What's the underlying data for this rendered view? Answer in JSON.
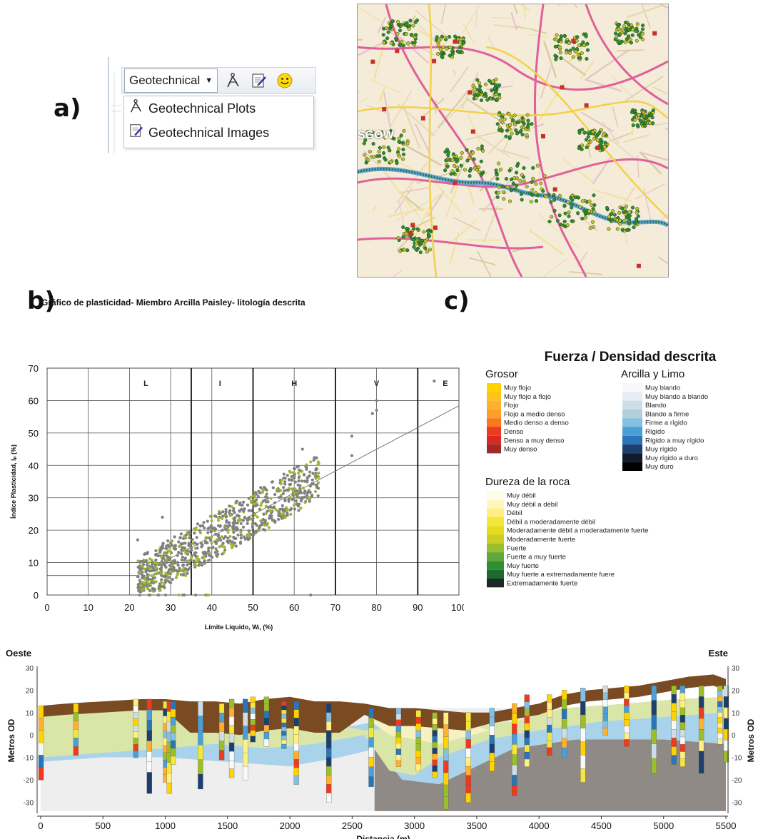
{
  "panel_labels": {
    "a": "a)",
    "b": "b)",
    "c": "c)"
  },
  "toolbar": {
    "dropdown_label": "Geotechnical",
    "menu_items": [
      "Geotechnical Plots",
      "Geotechnical Images"
    ],
    "icons": [
      "compass-icon",
      "notepad-pen-icon",
      "smiley-icon"
    ]
  },
  "map": {
    "label": "SGOW"
  },
  "caption_b": "Gráfico de plasticidad- Miembro Arcilla Paisley- litología descrita",
  "plasticity_chart": {
    "type": "scatter",
    "xlabel": "Límite Líquido, Wₗ, (%)",
    "ylabel": "Índice Plasticidad, Iₚ (%)",
    "xlim": [
      0,
      100
    ],
    "ylim": [
      0,
      70
    ],
    "x_ticks": [
      "0",
      "10",
      "20",
      "30",
      "40",
      "50",
      "60",
      "70",
      "80",
      "90",
      "100"
    ],
    "y_ticks": [
      "0",
      "10",
      "20",
      "30",
      "40",
      "50",
      "60",
      "70"
    ],
    "zones": [
      "L",
      "I",
      "H",
      "V",
      "E"
    ],
    "a_line": {
      "x": [
        22,
        100
      ],
      "y": [
        6,
        58.4
      ]
    },
    "point_colors": [
      "#808080",
      "#9bb82e"
    ]
  },
  "legend": {
    "title": "Fuerza / Densidad descrita",
    "grosor": {
      "heading": "Grosor",
      "items": [
        {
          "label": "Muy flojo",
          "color": "#ffd200"
        },
        {
          "label": "Muy flojo a flojo",
          "color": "#ffc21a"
        },
        {
          "label": "Flojo",
          "color": "#ffb030"
        },
        {
          "label": "Flojo a medio denso",
          "color": "#ff9d2a"
        },
        {
          "label": "Medio denso a denso",
          "color": "#f7781e"
        },
        {
          "label": "Denso",
          "color": "#ee3a1e"
        },
        {
          "label": "Denso a muy denso",
          "color": "#d62a22"
        },
        {
          "label": "Muy denso",
          "color": "#a02a2a"
        }
      ]
    },
    "arcilla": {
      "heading": "Arcilla y Limo",
      "items": [
        {
          "label": "Muy blando",
          "color": "#f7f9fb"
        },
        {
          "label": "Muy blando a blando",
          "color": "#e6edf3"
        },
        {
          "label": "Blando",
          "color": "#cfdde7"
        },
        {
          "label": "Blando a firme",
          "color": "#b2cfde"
        },
        {
          "label": "Firme a rígido",
          "color": "#84c0e0"
        },
        {
          "label": "Rígido",
          "color": "#4a9fd6"
        },
        {
          "label": "Rígido a muy rígido",
          "color": "#2a74b8"
        },
        {
          "label": "Muy rígido",
          "color": "#1c3f6e"
        },
        {
          "label": "Muy rígido a duro",
          "color": "#111a2b"
        },
        {
          "label": "Muy duro",
          "color": "#000000"
        }
      ]
    },
    "roca": {
      "heading": "Dureza de la roca",
      "items": [
        {
          "label": "Muy débil",
          "color": "#fffbe8"
        },
        {
          "label": "Muy débil a débil",
          "color": "#fff6c2"
        },
        {
          "label": "Débil",
          "color": "#fff080"
        },
        {
          "label": "Débil a moderadamente débil",
          "color": "#f5e63c"
        },
        {
          "label": "Moderadamente débil a moderadamente fuerte",
          "color": "#e6dc1e"
        },
        {
          "label": "Moderadamente fuerte",
          "color": "#c9cf24"
        },
        {
          "label": "Fuerte",
          "color": "#9cbe2a"
        },
        {
          "label": "Fuerte a muy fuerte",
          "color": "#5fa83a"
        },
        {
          "label": "Muy fuerte",
          "color": "#2f8f34"
        },
        {
          "label": "Muy fuerte a extremadamente fuere",
          "color": "#1d6a2c"
        },
        {
          "label": "Extremadamente fuerte",
          "color": "#1b2a22"
        }
      ]
    }
  },
  "section_chart": {
    "type": "area",
    "west_label": "Oeste",
    "east_label": "Este",
    "xlabel": "Distancia (m)",
    "ylabel_left": "Metros OD",
    "ylabel_right": "Metros OD",
    "xlim": [
      0,
      5500
    ],
    "ylim": [
      -35,
      30
    ],
    "x_ticks": [
      "0",
      "500",
      "1000",
      "1500",
      "2000",
      "2500",
      "3000",
      "3500",
      "4000",
      "4500",
      "5000",
      "5500"
    ],
    "y_ticks": [
      "30",
      "20",
      "10",
      "0",
      "-10",
      "-20",
      "-30"
    ],
    "layer_colors": {
      "made_ground": "#7a4a22",
      "clay_green": "#d9e6a8",
      "clay_blue": "#a9d3ea",
      "sand_yellow": "#f7f0c0",
      "bedrock": "#8f8a86",
      "base": "#eeeeee"
    },
    "surface": {
      "x": [
        0,
        200,
        500,
        800,
        1000,
        1200,
        1400,
        1600,
        1800,
        2000,
        2200,
        2400,
        2600,
        2800,
        3000,
        3200,
        3400,
        3600,
        3800,
        4000,
        4200,
        4400,
        4600,
        4800,
        5000,
        5200,
        5400,
        5500
      ],
      "y": [
        13,
        14,
        15,
        16,
        16,
        15,
        15,
        14,
        16,
        17,
        15,
        15,
        14,
        12,
        12,
        11,
        10,
        10,
        12,
        14,
        18,
        20,
        21,
        22,
        24,
        26,
        27,
        25
      ]
    }
  }
}
